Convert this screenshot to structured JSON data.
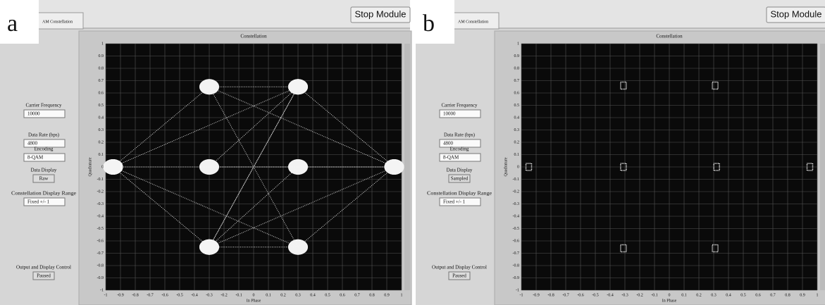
{
  "panels": [
    {
      "letter": "a",
      "tab": "AM Constellation",
      "stop_button": "Stop Module",
      "controls": [
        {
          "label": "Carrier Frequency",
          "value": 10000
        },
        {
          "label": "Data Rate (bps)",
          "value": 4800
        },
        {
          "label": "Encoding",
          "value": "8-QAM"
        },
        {
          "label": "Data Display",
          "value": "Raw"
        },
        {
          "label": "Constellation Display Range",
          "value": "Fixed +/- 1"
        },
        {
          "label": "Output and Display Control",
          "value": "Paused"
        }
      ],
      "chart_data": {
        "type": "line",
        "title": "Constellation",
        "x_label": "In Phase",
        "y_label": "Quadrature",
        "xlim": [
          -1,
          1
        ],
        "ylim": [
          -1,
          1
        ],
        "xticks": [
          -1,
          -0.9,
          -0.8,
          -0.7,
          -0.6,
          -0.5,
          -0.4,
          -0.3,
          -0.2,
          -0.1,
          0,
          0.1,
          0.2,
          0.3,
          0.4,
          0.5,
          0.6,
          0.7,
          0.8,
          0.9,
          1
        ],
        "yticks": [
          -1,
          -0.9,
          -0.8,
          -0.7,
          -0.6,
          -0.5,
          -0.4,
          -0.3,
          -0.2,
          -0.1,
          0,
          0.1,
          0.2,
          0.3,
          0.4,
          0.5,
          0.6,
          0.7,
          0.8,
          0.9,
          1
        ],
        "x": [
          -0.95,
          -0.3,
          0.3,
          0.95,
          0.3,
          -0.3,
          -0.95,
          -0.3,
          0.3,
          0.95,
          -0.3,
          0.3,
          -0.95,
          0.3,
          -0.3,
          0.95,
          -0.3,
          0.3,
          -0.3,
          0.3,
          -0.95
        ],
        "y": [
          0,
          0.65,
          0.65,
          0,
          -0.65,
          -0.65,
          0,
          0,
          0,
          0,
          0.65,
          -0.65,
          0,
          0.65,
          -0.65,
          0,
          0,
          0.65,
          -0.65,
          0,
          0
        ]
      }
    },
    {
      "letter": "b",
      "tab": "AM Constellation",
      "stop_button": "Stop Module",
      "controls": [
        {
          "label": "Carrier Frequency",
          "value": 10000
        },
        {
          "label": "Data Rate (bps)",
          "value": 4800
        },
        {
          "label": "Encoding",
          "value": "8-QAM"
        },
        {
          "label": "Data Display",
          "value": "Sampled"
        },
        {
          "label": "Constellation Display Range",
          "value": "Fixed +/- 1"
        },
        {
          "label": "Output and Display Control",
          "value": "Paused"
        }
      ],
      "chart_data": {
        "type": "scatter",
        "title": "Constellation",
        "x_label": "In Phase",
        "y_label": "Quadrature",
        "xlim": [
          -1,
          1
        ],
        "ylim": [
          -1,
          1
        ],
        "xticks": [
          -1,
          -0.9,
          -0.8,
          -0.7,
          -0.6,
          -0.5,
          -0.4,
          -0.3,
          -0.2,
          -0.1,
          0,
          0.1,
          0.2,
          0.3,
          0.4,
          0.5,
          0.6,
          0.7,
          0.8,
          0.9,
          1
        ],
        "yticks": [
          -1,
          -0.9,
          -0.8,
          -0.7,
          -0.6,
          -0.5,
          -0.4,
          -0.3,
          -0.2,
          -0.1,
          0,
          0.1,
          0.2,
          0.3,
          0.4,
          0.5,
          0.6,
          0.7,
          0.8,
          0.9,
          1
        ],
        "x": [
          -0.95,
          -0.31,
          0.31,
          0.95,
          -0.31,
          0.32,
          0.31,
          -0.31
        ],
        "y": [
          0,
          0.66,
          0.66,
          0,
          0,
          0,
          -0.66,
          -0.66
        ]
      }
    }
  ]
}
